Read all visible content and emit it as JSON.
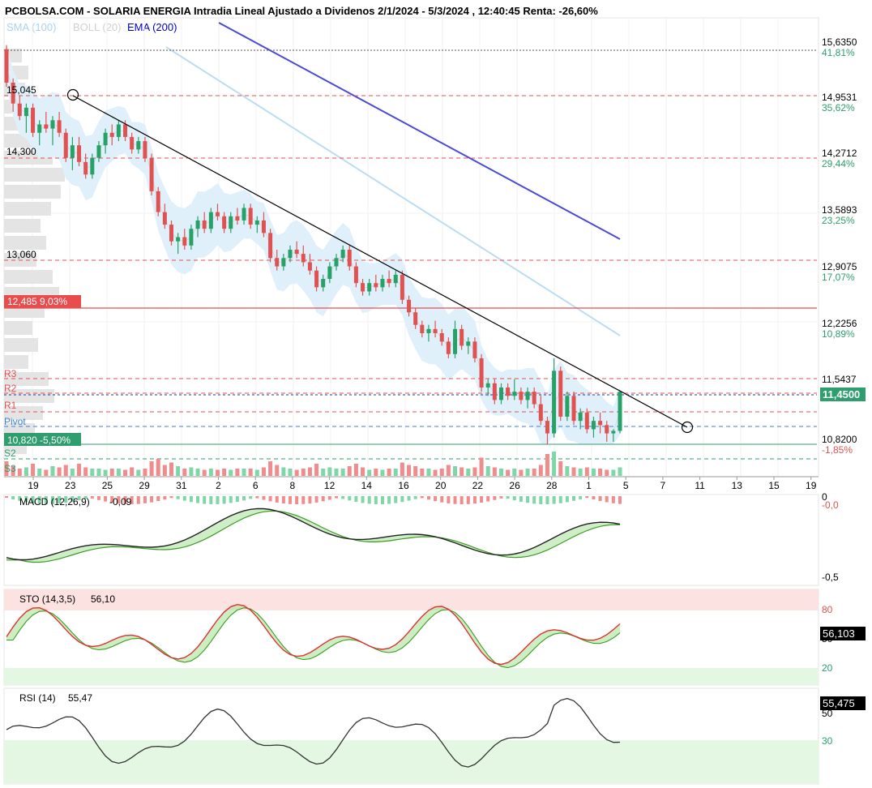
{
  "header": {
    "title": "PCBOLSA.COM - SOLARIA ENERGIA Intradia Lineal Ajustado a Dividenos 2/1/2024 - 5/3/2024 , 12:40:45 Renta: -26,60%"
  },
  "indicators_legend": [
    {
      "label": "SMA (100)",
      "color": "#a7d3f0"
    },
    {
      "label": "BOLL (20)",
      "color": "#d0d0d0"
    },
    {
      "label": "EMA (200)",
      "color": "#0000c8"
    }
  ],
  "colors": {
    "up": "#26a269",
    "down": "#e05252",
    "bollinger_fill": "#dff0fb",
    "sma_line": "#a7d3f0",
    "ema_line": "#4a4ad8",
    "trend_line": "#000000",
    "resistance": "#e05252",
    "pivot": "#3b82d6",
    "price_tag": "#2e9e6e",
    "macd_line": "#000000",
    "macd_signal": "#6fcf57",
    "sto_k": "#e03030",
    "sto_d": "#3a9d23",
    "rsi_line": "#333333",
    "overbought_zone": "#fde2e2",
    "oversold_zone": "#e3f7e3"
  },
  "price_axis": {
    "levels": [
      {
        "price": "15,6350",
        "pct": "41,81%"
      },
      {
        "price": "14,9531",
        "pct": "35,62%"
      },
      {
        "price": "14,2712",
        "pct": "29,44%"
      },
      {
        "price": "13,5893",
        "pct": "23,25%"
      },
      {
        "price": "12,9075",
        "pct": "17,07%"
      },
      {
        "price": "12,2256",
        "pct": "10,89%"
      },
      {
        "price": "11,5437",
        "pct": ""
      },
      {
        "price": "10,8200",
        "pct": "-1,85%"
      }
    ],
    "current_price": "11,4500"
  },
  "left_labels": {
    "level_15045": "15,045",
    "level_14300": "14,300",
    "level_13060": "13,060",
    "box_high": "12,485  9,03%",
    "box_low": "10,820  -5,50%",
    "r3": "R3",
    "r2": "R2",
    "r1": "R1",
    "pivot": "Pivot",
    "s2": "S2",
    "s3": "S3"
  },
  "x_axis": {
    "ticks": [
      "19",
      "23",
      "25",
      "29",
      "31",
      "2",
      "6",
      "8",
      "12",
      "14",
      "16",
      "20",
      "22",
      "26",
      "28",
      "1",
      "5",
      "7",
      "11",
      "13",
      "15",
      "19"
    ]
  },
  "macd": {
    "label": "MACD (12,26,9)",
    "value": "-0,09",
    "axis": [
      "0",
      "-0,0",
      "-0,5"
    ]
  },
  "sto": {
    "label": "STO (14,3,5)",
    "value": "56,10",
    "axis": [
      "80",
      "50",
      "20"
    ],
    "tag": "56,103"
  },
  "rsi": {
    "label": "RSI (14)",
    "value": "55,47",
    "axis": [
      "50",
      "30"
    ],
    "tag": "55,475"
  },
  "chart_data": {
    "type": "candlestick",
    "price_scale": {
      "min": 10.82,
      "max": 15.635
    },
    "candles": [
      [
        15.55,
        15.6,
        15.1,
        15.15
      ],
      [
        15.15,
        15.2,
        14.8,
        14.9
      ],
      [
        14.9,
        15.0,
        14.7,
        14.75
      ],
      [
        14.75,
        14.9,
        14.55,
        14.85
      ],
      [
        14.85,
        14.9,
        14.5,
        14.55
      ],
      [
        14.55,
        14.7,
        14.4,
        14.65
      ],
      [
        14.65,
        14.8,
        14.55,
        14.6
      ],
      [
        14.6,
        14.75,
        14.4,
        14.7
      ],
      [
        14.7,
        14.8,
        14.5,
        14.55
      ],
      [
        14.55,
        14.6,
        14.2,
        14.25
      ],
      [
        14.25,
        14.5,
        14.1,
        14.4
      ],
      [
        14.4,
        14.5,
        14.15,
        14.2
      ],
      [
        14.2,
        14.3,
        14.0,
        14.05
      ],
      [
        14.05,
        14.3,
        14.0,
        14.25
      ],
      [
        14.25,
        14.45,
        14.2,
        14.4
      ],
      [
        14.4,
        14.6,
        14.3,
        14.55
      ],
      [
        14.55,
        14.65,
        14.4,
        14.5
      ],
      [
        14.5,
        14.7,
        14.45,
        14.65
      ],
      [
        14.65,
        14.7,
        14.45,
        14.5
      ],
      [
        14.5,
        14.55,
        14.3,
        14.35
      ],
      [
        14.35,
        14.5,
        14.3,
        14.45
      ],
      [
        14.45,
        14.5,
        14.2,
        14.25
      ],
      [
        14.25,
        14.3,
        13.8,
        13.85
      ],
      [
        13.85,
        13.9,
        13.55,
        13.6
      ],
      [
        13.6,
        13.7,
        13.4,
        13.45
      ],
      [
        13.45,
        13.5,
        13.2,
        13.25
      ],
      [
        13.25,
        13.35,
        13.1,
        13.3
      ],
      [
        13.3,
        13.4,
        13.15,
        13.2
      ],
      [
        13.2,
        13.45,
        13.15,
        13.4
      ],
      [
        13.4,
        13.55,
        13.3,
        13.5
      ],
      [
        13.5,
        13.6,
        13.35,
        13.4
      ],
      [
        13.4,
        13.65,
        13.35,
        13.6
      ],
      [
        13.6,
        13.7,
        13.5,
        13.55
      ],
      [
        13.55,
        13.6,
        13.35,
        13.4
      ],
      [
        13.4,
        13.6,
        13.35,
        13.55
      ],
      [
        13.55,
        13.65,
        13.45,
        13.5
      ],
      [
        13.5,
        13.7,
        13.45,
        13.65
      ],
      [
        13.65,
        13.7,
        13.4,
        13.45
      ],
      [
        13.45,
        13.55,
        13.35,
        13.5
      ],
      [
        13.5,
        13.6,
        13.3,
        13.35
      ],
      [
        13.35,
        13.4,
        13.0,
        13.05
      ],
      [
        13.05,
        13.15,
        12.9,
        12.95
      ],
      [
        12.95,
        13.1,
        12.9,
        13.05
      ],
      [
        13.05,
        13.2,
        13.0,
        13.15
      ],
      [
        13.15,
        13.25,
        13.05,
        13.1
      ],
      [
        13.1,
        13.2,
        12.95,
        13.0
      ],
      [
        13.0,
        13.1,
        12.85,
        12.9
      ],
      [
        12.9,
        12.95,
        12.65,
        12.7
      ],
      [
        12.7,
        12.85,
        12.65,
        12.8
      ],
      [
        12.8,
        13.0,
        12.75,
        12.95
      ],
      [
        12.95,
        13.1,
        12.9,
        13.05
      ],
      [
        13.05,
        13.2,
        13.0,
        13.15
      ],
      [
        13.15,
        13.2,
        12.9,
        12.95
      ],
      [
        12.95,
        13.0,
        12.7,
        12.75
      ],
      [
        12.75,
        12.8,
        12.6,
        12.65
      ],
      [
        12.65,
        12.8,
        12.6,
        12.75
      ],
      [
        12.75,
        12.85,
        12.65,
        12.7
      ],
      [
        12.7,
        12.85,
        12.65,
        12.8
      ],
      [
        12.8,
        12.9,
        12.7,
        12.75
      ],
      [
        12.75,
        12.9,
        12.7,
        12.85
      ],
      [
        12.85,
        12.9,
        12.5,
        12.55
      ],
      [
        12.55,
        12.6,
        12.35,
        12.4
      ],
      [
        12.4,
        12.45,
        12.2,
        12.25
      ],
      [
        12.25,
        12.3,
        12.1,
        12.15
      ],
      [
        12.15,
        12.25,
        12.05,
        12.2
      ],
      [
        12.2,
        12.3,
        12.1,
        12.15
      ],
      [
        12.15,
        12.2,
        12.0,
        12.05
      ],
      [
        12.05,
        12.1,
        11.85,
        11.9
      ],
      [
        11.9,
        12.3,
        11.85,
        12.2
      ],
      [
        12.2,
        12.25,
        11.95,
        12.0
      ],
      [
        12.0,
        12.1,
        11.9,
        12.05
      ],
      [
        12.05,
        12.1,
        11.8,
        11.85
      ],
      [
        11.85,
        11.9,
        11.45,
        11.5
      ],
      [
        11.5,
        11.6,
        11.4,
        11.55
      ],
      [
        11.55,
        11.6,
        11.3,
        11.35
      ],
      [
        11.35,
        11.55,
        11.3,
        11.5
      ],
      [
        11.5,
        11.55,
        11.35,
        11.4
      ],
      [
        11.4,
        11.6,
        11.35,
        11.45
      ],
      [
        11.45,
        11.5,
        11.3,
        11.35
      ],
      [
        11.35,
        11.5,
        11.25,
        11.45
      ],
      [
        11.45,
        11.5,
        11.25,
        11.3
      ],
      [
        11.3,
        11.4,
        11.05,
        11.1
      ],
      [
        11.1,
        11.15,
        10.82,
        10.95
      ],
      [
        10.95,
        11.85,
        10.9,
        11.7
      ],
      [
        11.7,
        11.75,
        11.1,
        11.15
      ],
      [
        11.15,
        11.45,
        11.1,
        11.4
      ],
      [
        11.4,
        11.45,
        11.05,
        11.1
      ],
      [
        11.1,
        11.25,
        11.0,
        11.2
      ],
      [
        11.2,
        11.25,
        10.95,
        11.0
      ],
      [
        11.0,
        11.15,
        10.9,
        11.1
      ],
      [
        11.1,
        11.2,
        10.95,
        11.05
      ],
      [
        11.05,
        11.1,
        10.85,
        10.95
      ],
      [
        10.95,
        11.0,
        10.85,
        10.98
      ],
      [
        10.98,
        11.45,
        10.95,
        11.45
      ]
    ],
    "volume": [
      0.6,
      0.4,
      0.3,
      0.35,
      0.5,
      0.3,
      0.25,
      0.4,
      0.35,
      0.45,
      0.3,
      0.5,
      0.35,
      0.3,
      0.3,
      0.25,
      0.3,
      0.3,
      0.25,
      0.35,
      0.25,
      0.3,
      0.6,
      0.7,
      0.45,
      0.55,
      0.4,
      0.3,
      0.35,
      0.3,
      0.25,
      0.3,
      0.25,
      0.3,
      0.25,
      0.3,
      0.3,
      0.3,
      0.25,
      0.35,
      0.6,
      0.45,
      0.35,
      0.3,
      0.25,
      0.3,
      0.35,
      0.5,
      0.3,
      0.35,
      0.3,
      0.3,
      0.4,
      0.5,
      0.35,
      0.25,
      0.3,
      0.25,
      0.3,
      0.3,
      0.55,
      0.45,
      0.4,
      0.3,
      0.3,
      0.25,
      0.3,
      0.45,
      0.4,
      0.35,
      0.3,
      0.35,
      0.75,
      0.4,
      0.35,
      0.3,
      0.25,
      0.3,
      0.25,
      0.3,
      0.3,
      0.45,
      0.9,
      1.0,
      0.6,
      0.4,
      0.35,
      0.3,
      0.35,
      0.3,
      0.3,
      0.25,
      0.25,
      0.35
    ]
  }
}
